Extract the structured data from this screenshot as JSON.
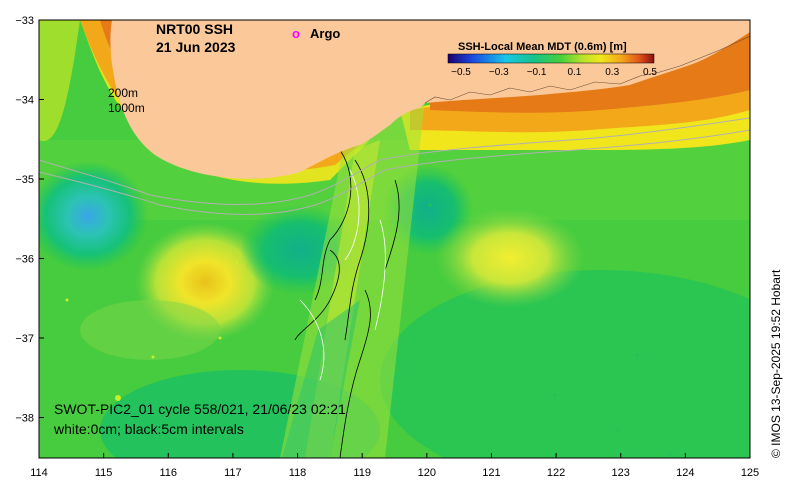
{
  "title_line1": "NRT00 SSH",
  "title_line2": "21 Jun 2023",
  "argo_marker": "o",
  "argo_label": "Argo",
  "isobath_200": "200m",
  "isobath_1000": "1000m",
  "colorbar": {
    "title": "SSH-Local Mean MDT (0.6m) [m]",
    "ticks": [
      "−0.5",
      "−0.3",
      "−0.1",
      "0.1",
      "0.3",
      "0.5"
    ]
  },
  "swot_line1": "SWOT-PIC2_01 cycle 558/021, 21/06/23 02:21",
  "swot_line2": "white:0cm; black:5cm intervals",
  "credit": "© IMOS 13-Sep-2025 19:52 Hobart",
  "x_ticks": [
    "114",
    "115",
    "116",
    "117",
    "118",
    "119",
    "120",
    "121",
    "122",
    "123",
    "124",
    "125"
  ],
  "y_ticks": [
    "−33",
    "−34",
    "−35",
    "−36",
    "−37",
    "−38"
  ],
  "colors": {
    "land": "#fbc89a",
    "argo": "#ff00ff"
  }
}
